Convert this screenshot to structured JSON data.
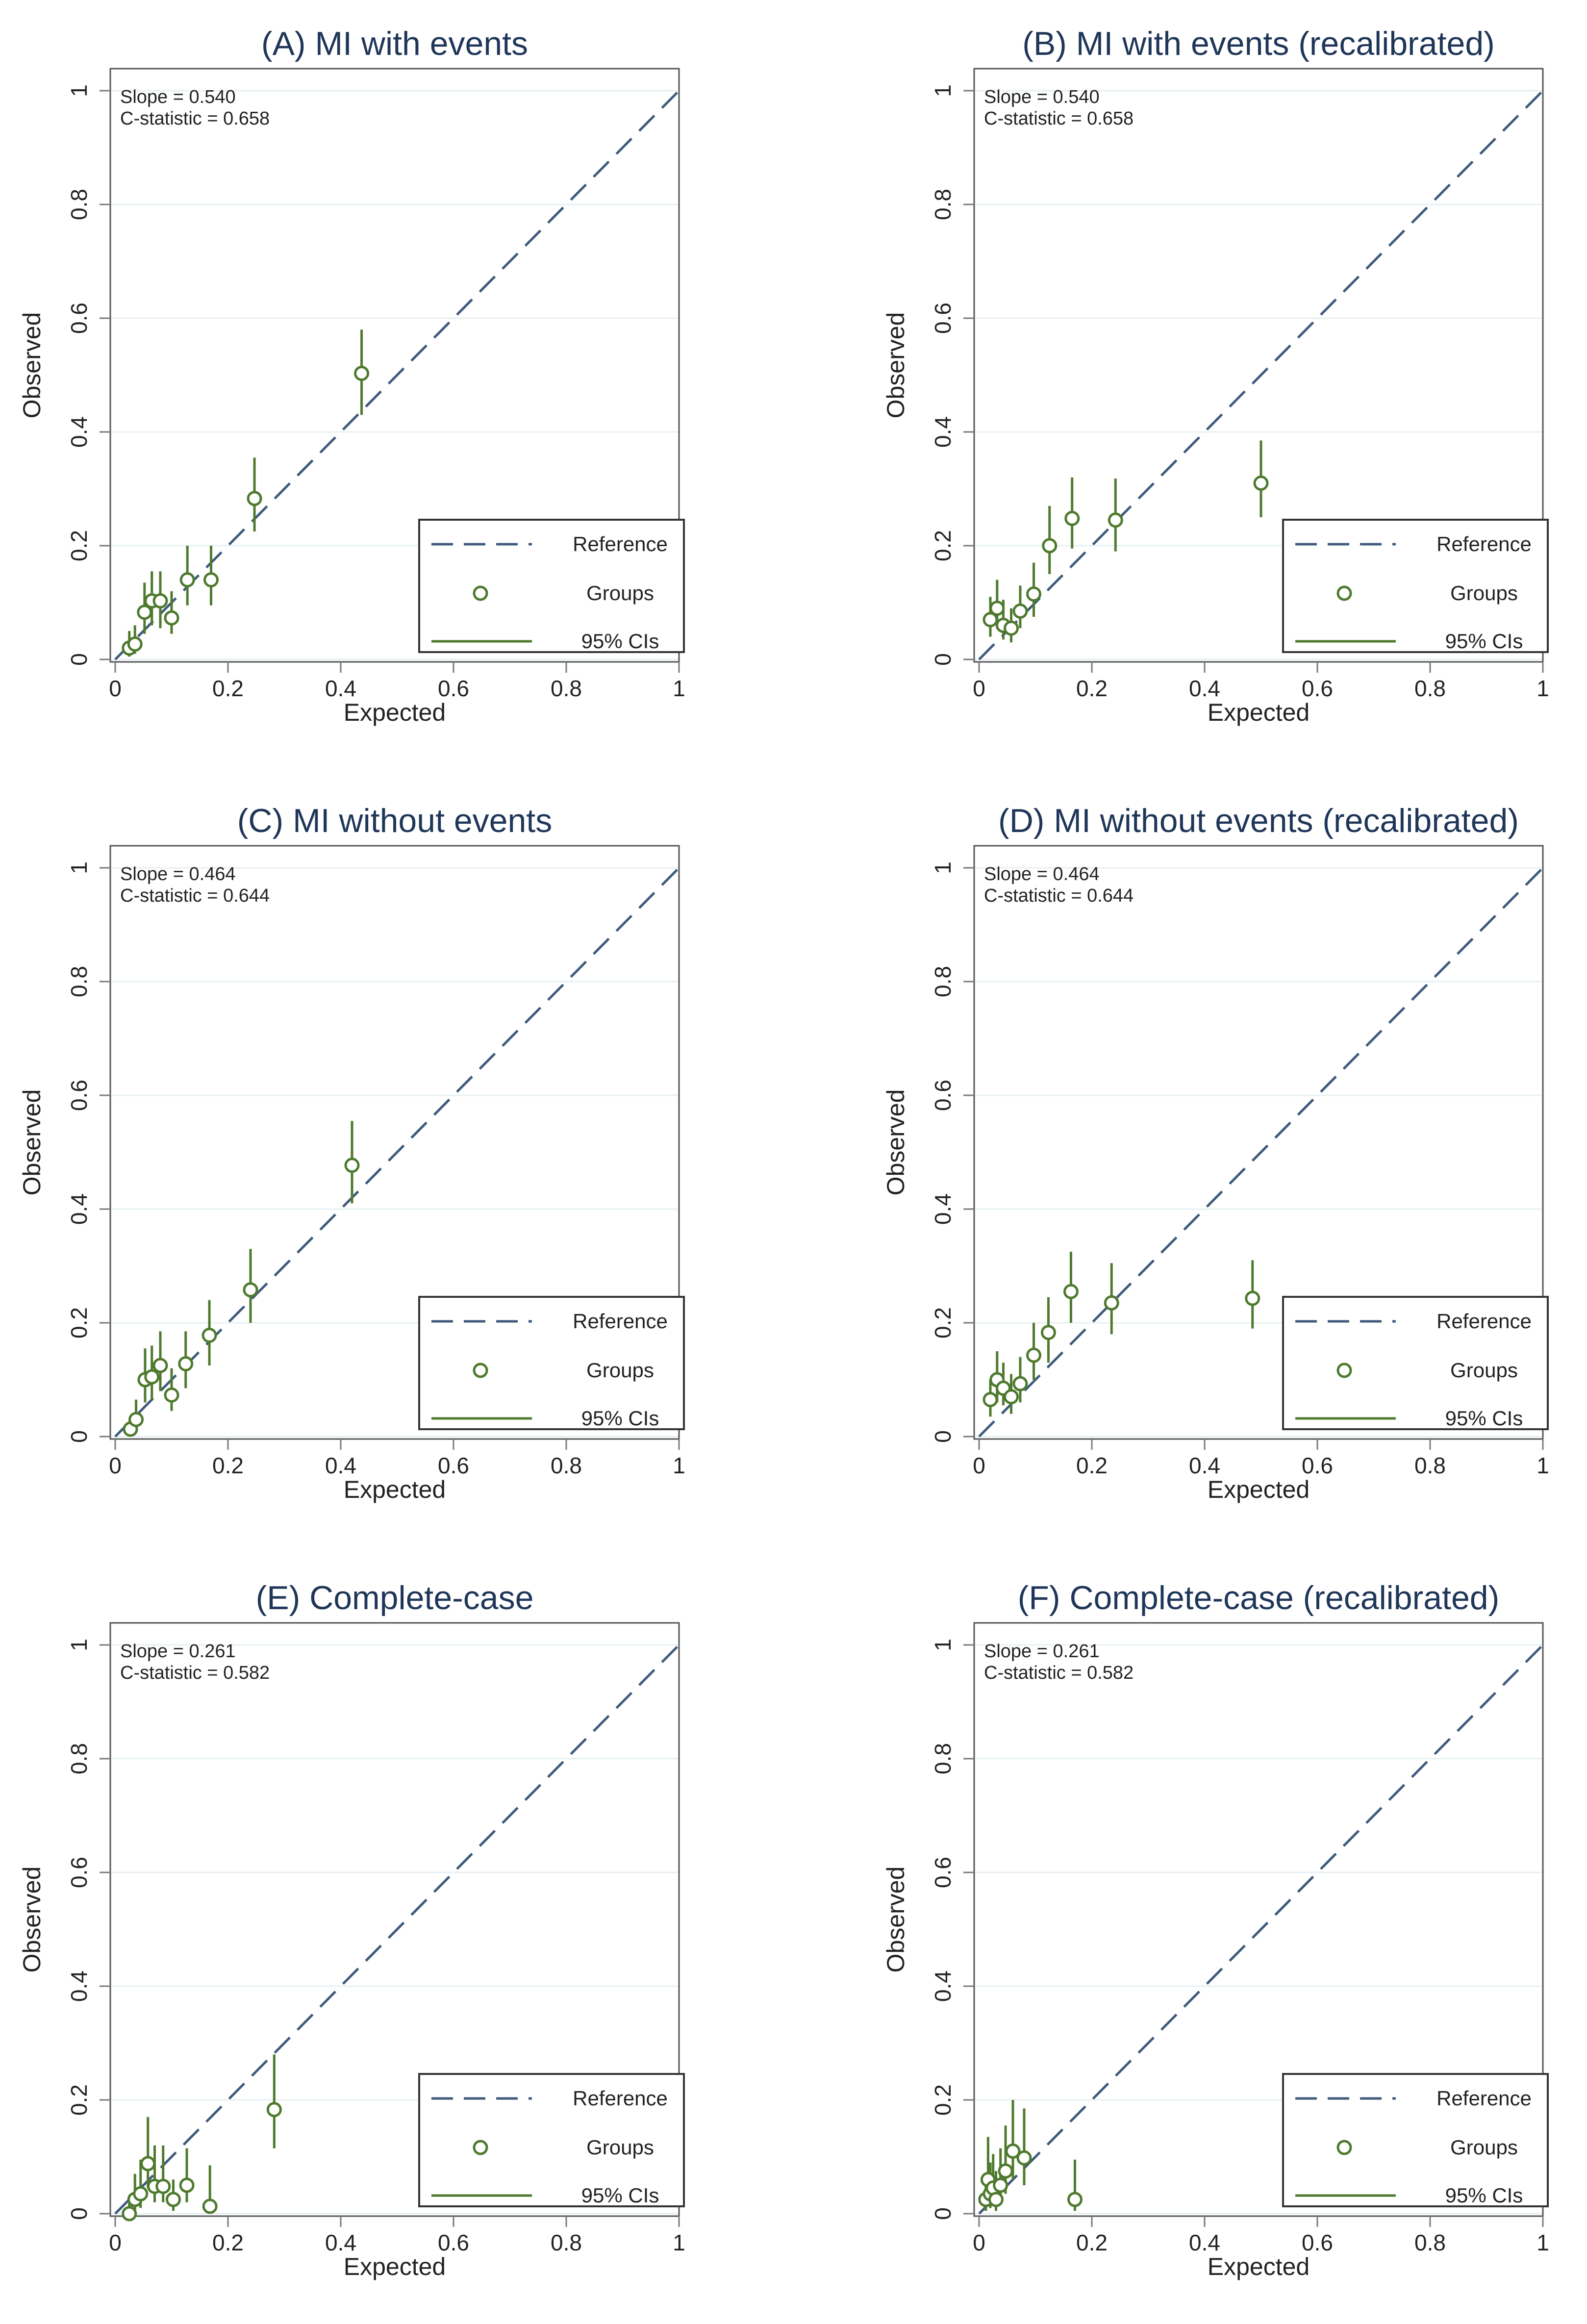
{
  "chart_data": [
    {
      "type": "scatter",
      "title": "(A) MI with events",
      "xlabel": "Expected",
      "ylabel": "Observed",
      "xlim": [
        0,
        1
      ],
      "ylim": [
        0,
        1
      ],
      "xticks": [
        "0",
        "0.2",
        "0.4",
        "0.6",
        "0.8",
        "1"
      ],
      "yticks": [
        "0",
        "0.2",
        "0.4",
        "0.6",
        "0.8",
        "1"
      ],
      "grid": true,
      "annotations": [
        "Slope = 0.540",
        "C-statistic = 0.658"
      ],
      "legend": {
        "position": "bottom-right",
        "entries": [
          "Reference",
          "Groups",
          "95% CIs"
        ]
      },
      "series": [
        {
          "name": "Reference",
          "kind": "line",
          "x": [
            0,
            1
          ],
          "y": [
            0,
            1
          ]
        },
        {
          "name": "Groups",
          "kind": "points",
          "x": [
            0.025,
            0.035,
            0.052,
            0.065,
            0.08,
            0.1,
            0.128,
            0.17,
            0.247,
            0.437
          ],
          "y": [
            0.02,
            0.027,
            0.083,
            0.103,
            0.103,
            0.073,
            0.14,
            0.14,
            0.283,
            0.503
          ],
          "ci_low": [
            0.005,
            0.01,
            0.045,
            0.06,
            0.055,
            0.045,
            0.095,
            0.095,
            0.225,
            0.43
          ],
          "ci_high": [
            0.05,
            0.06,
            0.135,
            0.155,
            0.155,
            0.12,
            0.2,
            0.2,
            0.355,
            0.58
          ]
        }
      ]
    },
    {
      "type": "scatter",
      "title": "(B) MI with events (recalibrated)",
      "xlabel": "Expected",
      "ylabel": "Observed",
      "xlim": [
        0,
        1
      ],
      "ylim": [
        0,
        1
      ],
      "xticks": [
        "0",
        "0.2",
        "0.4",
        "0.6",
        "0.8",
        "1"
      ],
      "yticks": [
        "0",
        "0.2",
        "0.4",
        "0.6",
        "0.8",
        "1"
      ],
      "grid": true,
      "annotations": [
        "Slope = 0.540",
        "C-statistic = 0.658"
      ],
      "legend": {
        "position": "bottom-right",
        "entries": [
          "Reference",
          "Groups",
          "95% CIs"
        ]
      },
      "series": [
        {
          "name": "Reference",
          "kind": "line",
          "x": [
            0,
            1
          ],
          "y": [
            0,
            1
          ]
        },
        {
          "name": "Groups",
          "kind": "points",
          "x": [
            0.02,
            0.032,
            0.043,
            0.057,
            0.073,
            0.097,
            0.125,
            0.165,
            0.242,
            0.5
          ],
          "y": [
            0.07,
            0.09,
            0.06,
            0.055,
            0.085,
            0.115,
            0.2,
            0.248,
            0.245,
            0.31
          ],
          "ci_low": [
            0.04,
            0.055,
            0.035,
            0.03,
            0.055,
            0.075,
            0.15,
            0.195,
            0.19,
            0.25
          ],
          "ci_high": [
            0.11,
            0.14,
            0.105,
            0.09,
            0.13,
            0.17,
            0.27,
            0.32,
            0.318,
            0.385
          ]
        }
      ]
    },
    {
      "type": "scatter",
      "title": "(C) MI without events",
      "xlabel": "Expected",
      "ylabel": "Observed",
      "xlim": [
        0,
        1
      ],
      "ylim": [
        0,
        1
      ],
      "xticks": [
        "0",
        "0.2",
        "0.4",
        "0.6",
        "0.8",
        "1"
      ],
      "yticks": [
        "0",
        "0.2",
        "0.4",
        "0.6",
        "0.8",
        "1"
      ],
      "grid": true,
      "annotations": [
        "Slope = 0.464",
        "C-statistic = 0.644"
      ],
      "legend": {
        "position": "bottom-right",
        "entries": [
          "Reference",
          "Groups",
          "95% CIs"
        ]
      },
      "series": [
        {
          "name": "Reference",
          "kind": "line",
          "x": [
            0,
            1
          ],
          "y": [
            0,
            1
          ]
        },
        {
          "name": "Groups",
          "kind": "points",
          "x": [
            0.027,
            0.037,
            0.053,
            0.065,
            0.08,
            0.1,
            0.125,
            0.167,
            0.24,
            0.42
          ],
          "y": [
            0.013,
            0.03,
            0.1,
            0.105,
            0.125,
            0.073,
            0.128,
            0.178,
            0.258,
            0.477
          ],
          "ci_low": [
            0.0,
            0.01,
            0.06,
            0.065,
            0.08,
            0.045,
            0.085,
            0.125,
            0.2,
            0.41
          ],
          "ci_high": [
            0.035,
            0.065,
            0.155,
            0.16,
            0.185,
            0.12,
            0.185,
            0.24,
            0.33,
            0.555
          ]
        }
      ]
    },
    {
      "type": "scatter",
      "title": "(D) MI without events (recalibrated)",
      "xlabel": "Expected",
      "ylabel": "Observed",
      "xlim": [
        0,
        1
      ],
      "ylim": [
        0,
        1
      ],
      "xticks": [
        "0",
        "0.2",
        "0.4",
        "0.6",
        "0.8",
        "1"
      ],
      "yticks": [
        "0",
        "0.2",
        "0.4",
        "0.6",
        "0.8",
        "1"
      ],
      "grid": true,
      "annotations": [
        "Slope = 0.464",
        "C-statistic = 0.644"
      ],
      "legend": {
        "position": "bottom-right",
        "entries": [
          "Reference",
          "Groups",
          "95% CIs"
        ]
      },
      "series": [
        {
          "name": "Reference",
          "kind": "line",
          "x": [
            0,
            1
          ],
          "y": [
            0,
            1
          ]
        },
        {
          "name": "Groups",
          "kind": "points",
          "x": [
            0.02,
            0.032,
            0.043,
            0.057,
            0.073,
            0.097,
            0.123,
            0.163,
            0.235,
            0.485
          ],
          "y": [
            0.065,
            0.1,
            0.085,
            0.07,
            0.093,
            0.143,
            0.183,
            0.255,
            0.235,
            0.243
          ],
          "ci_low": [
            0.035,
            0.06,
            0.055,
            0.04,
            0.06,
            0.1,
            0.13,
            0.2,
            0.18,
            0.19
          ],
          "ci_high": [
            0.1,
            0.15,
            0.13,
            0.11,
            0.14,
            0.2,
            0.245,
            0.325,
            0.305,
            0.31
          ]
        }
      ]
    },
    {
      "type": "scatter",
      "title": "(E) Complete-case",
      "xlabel": "Expected",
      "ylabel": "Observed",
      "xlim": [
        0,
        1
      ],
      "ylim": [
        0,
        1
      ],
      "xticks": [
        "0",
        "0.2",
        "0.4",
        "0.6",
        "0.8",
        "1"
      ],
      "yticks": [
        "0",
        "0.2",
        "0.4",
        "0.6",
        "0.8",
        "1"
      ],
      "grid": true,
      "annotations": [
        "Slope = 0.261",
        "C-statistic = 0.582"
      ],
      "legend": {
        "position": "bottom-right",
        "entries": [
          "Reference",
          "Groups",
          "95% CIs"
        ]
      },
      "series": [
        {
          "name": "Reference",
          "kind": "line",
          "x": [
            0,
            1
          ],
          "y": [
            0,
            1
          ]
        },
        {
          "name": "Groups",
          "kind": "points",
          "x": [
            0.025,
            0.035,
            0.045,
            0.058,
            0.07,
            0.085,
            0.103,
            0.127,
            0.168,
            0.282
          ],
          "y": [
            0.0,
            0.025,
            0.035,
            0.088,
            0.048,
            0.048,
            0.025,
            0.05,
            0.013,
            0.183
          ],
          "ci_low": [
            0.0,
            0.005,
            0.01,
            0.045,
            0.02,
            0.02,
            0.005,
            0.02,
            0.0,
            0.115
          ],
          "ci_high": [
            0.02,
            0.07,
            0.095,
            0.17,
            0.12,
            0.12,
            0.06,
            0.115,
            0.085,
            0.28
          ]
        }
      ]
    },
    {
      "type": "scatter",
      "title": "(F) Complete-case (recalibrated)",
      "xlabel": "Expected",
      "ylabel": "Observed",
      "xlim": [
        0,
        1
      ],
      "ylim": [
        0,
        1
      ],
      "xticks": [
        "0",
        "0.2",
        "0.4",
        "0.6",
        "0.8",
        "1"
      ],
      "yticks": [
        "0",
        "0.2",
        "0.4",
        "0.6",
        "0.8",
        "1"
      ],
      "grid": true,
      "annotations": [
        "Slope = 0.261",
        "C-statistic = 0.582"
      ],
      "legend": {
        "position": "bottom-right",
        "entries": [
          "Reference",
          "Groups",
          "95% CIs"
        ]
      },
      "series": [
        {
          "name": "Reference",
          "kind": "line",
          "x": [
            0,
            1
          ],
          "y": [
            0,
            1
          ]
        },
        {
          "name": "Groups",
          "kind": "points",
          "x": [
            0.012,
            0.016,
            0.02,
            0.025,
            0.03,
            0.038,
            0.047,
            0.06,
            0.08,
            0.17
          ],
          "y": [
            0.025,
            0.06,
            0.035,
            0.045,
            0.025,
            0.05,
            0.075,
            0.11,
            0.098,
            0.025
          ],
          "ci_low": [
            0.005,
            0.02,
            0.01,
            0.015,
            0.005,
            0.02,
            0.035,
            0.06,
            0.05,
            0.005
          ],
          "ci_high": [
            0.07,
            0.135,
            0.09,
            0.105,
            0.075,
            0.115,
            0.155,
            0.2,
            0.185,
            0.095
          ]
        }
      ]
    }
  ],
  "colors": {
    "reference": "#3e5a7c",
    "groups": "#4e7a2e",
    "ci": "#4e7a2e",
    "title": "#1f3659",
    "grid": "#e8f0f3",
    "axis": "#7a7a7a",
    "text": "#222222"
  }
}
